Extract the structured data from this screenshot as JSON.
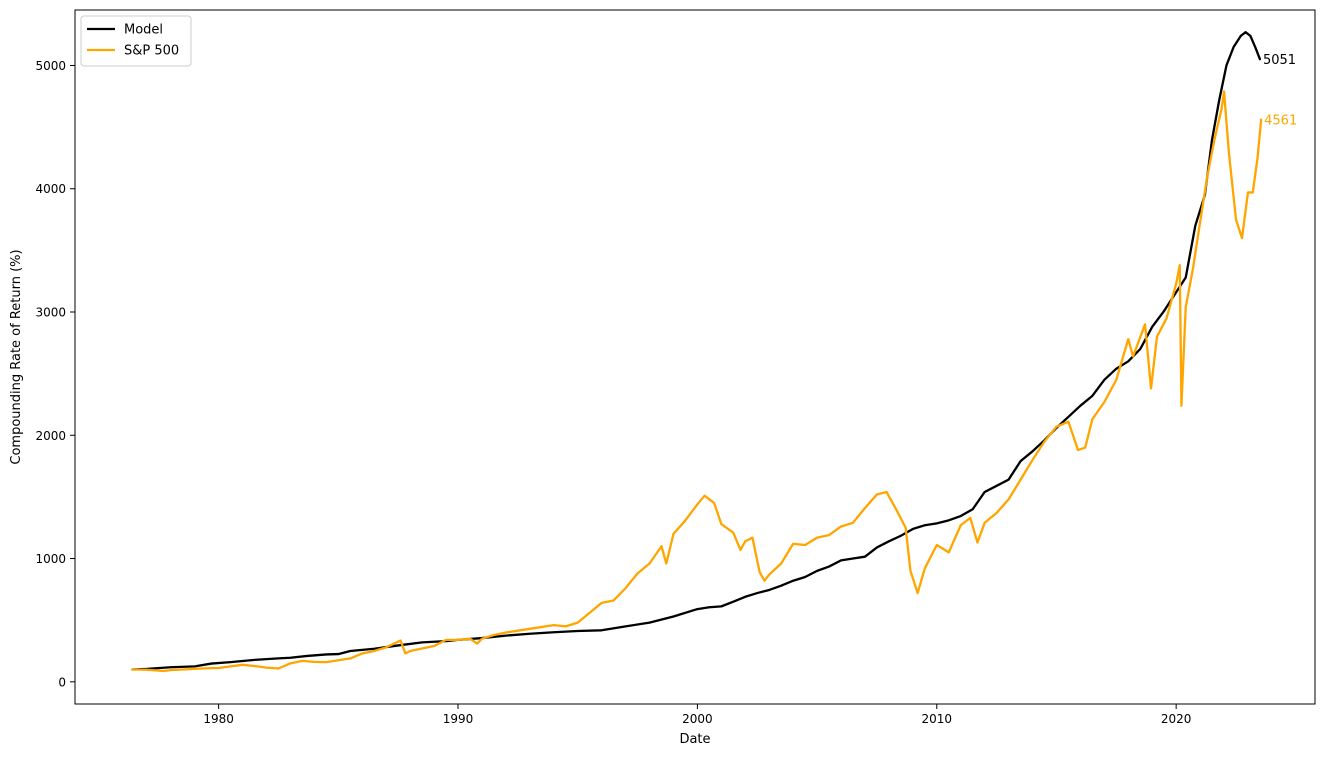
{
  "chart_data": {
    "type": "line",
    "title": "",
    "xlabel": "Date",
    "ylabel": "Compounding Rate of Return (%)",
    "xlim": [
      1974.0,
      2025.8
    ],
    "ylim": [
      -180,
      5450
    ],
    "x_ticks": [
      1980,
      1990,
      2000,
      2010,
      2020
    ],
    "x_tick_labels": [
      "1980",
      "1990",
      "2000",
      "2010",
      "2020"
    ],
    "y_ticks": [
      0,
      1000,
      2000,
      3000,
      4000,
      5000
    ],
    "y_tick_labels": [
      "0",
      "1000",
      "2000",
      "3000",
      "4000",
      "5000"
    ],
    "grid": false,
    "legend_position": "upper-left",
    "series": [
      {
        "name": "Model",
        "color": "#000000",
        "end_label": "5051",
        "points": [
          [
            1976.4,
            100
          ],
          [
            1977.0,
            105
          ],
          [
            1978.0,
            118
          ],
          [
            1979.0,
            125
          ],
          [
            1979.7,
            148
          ],
          [
            1980.5,
            160
          ],
          [
            1981.5,
            178
          ],
          [
            1982.5,
            190
          ],
          [
            1983.0,
            195
          ],
          [
            1983.7,
            210
          ],
          [
            1984.5,
            222
          ],
          [
            1985.0,
            225
          ],
          [
            1985.5,
            250
          ],
          [
            1986.5,
            268
          ],
          [
            1987.5,
            295
          ],
          [
            1988.5,
            320
          ],
          [
            1989.5,
            330
          ],
          [
            1990.0,
            340
          ],
          [
            1991.0,
            355
          ],
          [
            1992.0,
            375
          ],
          [
            1993.0,
            390
          ],
          [
            1994.0,
            402
          ],
          [
            1995.0,
            412
          ],
          [
            1996.0,
            418
          ],
          [
            1997.0,
            450
          ],
          [
            1998.0,
            480
          ],
          [
            1999.0,
            530
          ],
          [
            2000.0,
            590
          ],
          [
            2000.5,
            605
          ],
          [
            2001.0,
            612
          ],
          [
            2001.5,
            650
          ],
          [
            2002.0,
            690
          ],
          [
            2002.5,
            720
          ],
          [
            2003.0,
            745
          ],
          [
            2003.5,
            780
          ],
          [
            2004.0,
            820
          ],
          [
            2004.5,
            850
          ],
          [
            2005.0,
            900
          ],
          [
            2005.5,
            935
          ],
          [
            2006.0,
            985
          ],
          [
            2006.5,
            1000
          ],
          [
            2007.0,
            1015
          ],
          [
            2007.5,
            1090
          ],
          [
            2008.0,
            1140
          ],
          [
            2008.5,
            1185
          ],
          [
            2009.0,
            1240
          ],
          [
            2009.5,
            1270
          ],
          [
            2010.0,
            1285
          ],
          [
            2010.5,
            1310
          ],
          [
            2011.0,
            1345
          ],
          [
            2011.5,
            1400
          ],
          [
            2012.0,
            1540
          ],
          [
            2012.5,
            1590
          ],
          [
            2013.0,
            1640
          ],
          [
            2013.5,
            1790
          ],
          [
            2014.0,
            1870
          ],
          [
            2014.5,
            1960
          ],
          [
            2015.0,
            2060
          ],
          [
            2015.5,
            2150
          ],
          [
            2016.0,
            2240
          ],
          [
            2016.5,
            2320
          ],
          [
            2017.0,
            2450
          ],
          [
            2017.5,
            2540
          ],
          [
            2018.0,
            2600
          ],
          [
            2018.5,
            2700
          ],
          [
            2019.0,
            2880
          ],
          [
            2019.5,
            3010
          ],
          [
            2020.0,
            3160
          ],
          [
            2020.4,
            3280
          ],
          [
            2020.8,
            3700
          ],
          [
            2021.2,
            3950
          ],
          [
            2021.5,
            4400
          ],
          [
            2021.8,
            4720
          ],
          [
            2022.1,
            5000
          ],
          [
            2022.4,
            5150
          ],
          [
            2022.7,
            5240
          ],
          [
            2022.9,
            5270
          ],
          [
            2023.1,
            5240
          ],
          [
            2023.3,
            5150
          ],
          [
            2023.5,
            5051
          ]
        ]
      },
      {
        "name": "S&P 500",
        "color": "#FFA500",
        "end_label": "4561",
        "points": [
          [
            1976.4,
            100
          ],
          [
            1977.0,
            98
          ],
          [
            1977.7,
            88
          ],
          [
            1978.0,
            95
          ],
          [
            1978.5,
            100
          ],
          [
            1979.0,
            105
          ],
          [
            1979.5,
            110
          ],
          [
            1980.0,
            112
          ],
          [
            1980.5,
            125
          ],
          [
            1981.0,
            138
          ],
          [
            1981.5,
            128
          ],
          [
            1982.0,
            115
          ],
          [
            1982.5,
            108
          ],
          [
            1983.0,
            150
          ],
          [
            1983.5,
            170
          ],
          [
            1984.0,
            162
          ],
          [
            1984.5,
            160
          ],
          [
            1985.0,
            175
          ],
          [
            1985.5,
            190
          ],
          [
            1986.0,
            230
          ],
          [
            1986.5,
            250
          ],
          [
            1987.0,
            280
          ],
          [
            1987.6,
            335
          ],
          [
            1987.8,
            230
          ],
          [
            1988.0,
            250
          ],
          [
            1988.5,
            270
          ],
          [
            1989.0,
            290
          ],
          [
            1989.5,
            340
          ],
          [
            1990.0,
            340
          ],
          [
            1990.5,
            350
          ],
          [
            1990.8,
            310
          ],
          [
            1991.0,
            350
          ],
          [
            1991.5,
            380
          ],
          [
            1992.0,
            400
          ],
          [
            1993.0,
            430
          ],
          [
            1994.0,
            460
          ],
          [
            1994.5,
            450
          ],
          [
            1995.0,
            480
          ],
          [
            1995.5,
            560
          ],
          [
            1996.0,
            640
          ],
          [
            1996.5,
            660
          ],
          [
            1997.0,
            760
          ],
          [
            1997.5,
            880
          ],
          [
            1998.0,
            960
          ],
          [
            1998.5,
            1100
          ],
          [
            1998.7,
            960
          ],
          [
            1999.0,
            1200
          ],
          [
            1999.5,
            1310
          ],
          [
            2000.0,
            1440
          ],
          [
            2000.3,
            1510
          ],
          [
            2000.7,
            1450
          ],
          [
            2001.0,
            1280
          ],
          [
            2001.5,
            1210
          ],
          [
            2001.8,
            1070
          ],
          [
            2002.0,
            1140
          ],
          [
            2002.3,
            1170
          ],
          [
            2002.6,
            890
          ],
          [
            2002.8,
            820
          ],
          [
            2003.0,
            870
          ],
          [
            2003.5,
            960
          ],
          [
            2004.0,
            1120
          ],
          [
            2004.5,
            1110
          ],
          [
            2005.0,
            1170
          ],
          [
            2005.5,
            1190
          ],
          [
            2006.0,
            1260
          ],
          [
            2006.5,
            1290
          ],
          [
            2007.0,
            1410
          ],
          [
            2007.5,
            1520
          ],
          [
            2007.9,
            1540
          ],
          [
            2008.3,
            1400
          ],
          [
            2008.7,
            1250
          ],
          [
            2008.9,
            900
          ],
          [
            2009.2,
            720
          ],
          [
            2009.5,
            920
          ],
          [
            2010.0,
            1110
          ],
          [
            2010.5,
            1050
          ],
          [
            2011.0,
            1270
          ],
          [
            2011.4,
            1330
          ],
          [
            2011.7,
            1130
          ],
          [
            2012.0,
            1290
          ],
          [
            2012.5,
            1370
          ],
          [
            2013.0,
            1480
          ],
          [
            2013.5,
            1640
          ],
          [
            2014.0,
            1800
          ],
          [
            2014.5,
            1950
          ],
          [
            2015.0,
            2070
          ],
          [
            2015.5,
            2110
          ],
          [
            2015.9,
            1880
          ],
          [
            2016.2,
            1900
          ],
          [
            2016.5,
            2130
          ],
          [
            2017.0,
            2270
          ],
          [
            2017.5,
            2450
          ],
          [
            2018.0,
            2780
          ],
          [
            2018.2,
            2640
          ],
          [
            2018.7,
            2900
          ],
          [
            2018.95,
            2380
          ],
          [
            2019.2,
            2800
          ],
          [
            2019.6,
            2950
          ],
          [
            2020.0,
            3230
          ],
          [
            2020.15,
            3380
          ],
          [
            2020.22,
            2240
          ],
          [
            2020.4,
            3040
          ],
          [
            2020.7,
            3350
          ],
          [
            2021.0,
            3730
          ],
          [
            2021.3,
            4100
          ],
          [
            2021.6,
            4400
          ],
          [
            2021.9,
            4650
          ],
          [
            2022.0,
            4790
          ],
          [
            2022.2,
            4300
          ],
          [
            2022.5,
            3750
          ],
          [
            2022.75,
            3600
          ],
          [
            2023.0,
            3970
          ],
          [
            2023.2,
            3970
          ],
          [
            2023.4,
            4250
          ],
          [
            2023.55,
            4561
          ]
        ]
      }
    ]
  }
}
